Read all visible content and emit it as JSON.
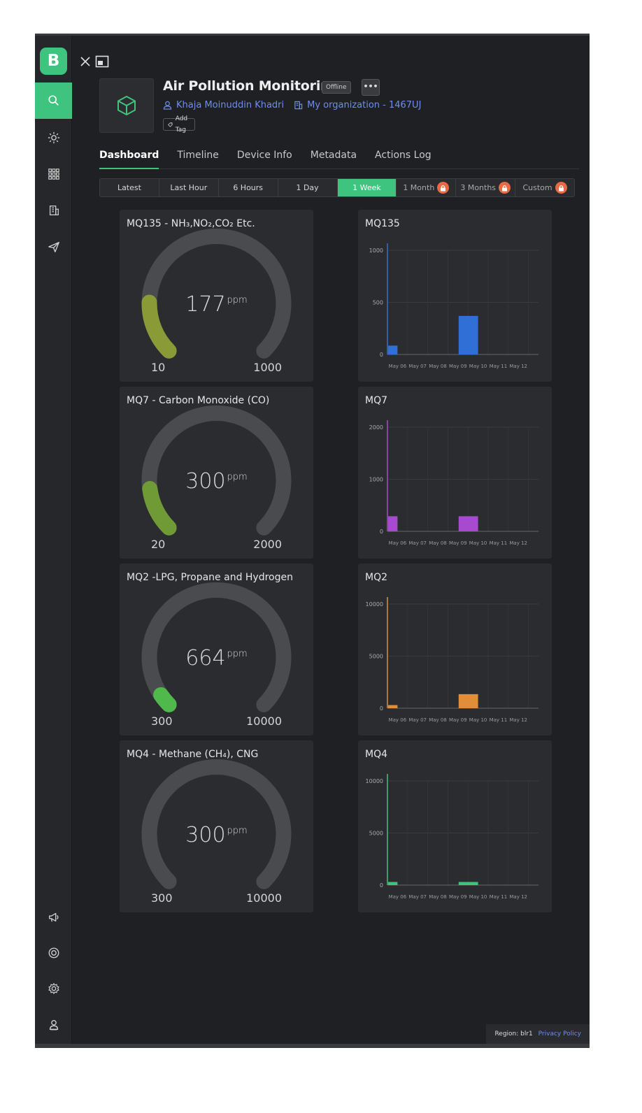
{
  "app": {
    "logo_letter": "B",
    "brand_color": "#3ec47e"
  },
  "sidebar": {
    "items": [
      {
        "name": "search-icon",
        "active": true
      },
      {
        "name": "sun-icon"
      },
      {
        "name": "grid-icon"
      },
      {
        "name": "building-icon"
      },
      {
        "name": "send-icon"
      }
    ],
    "bottom_items": [
      {
        "name": "megaphone-icon"
      },
      {
        "name": "lifebuoy-icon"
      },
      {
        "name": "gear-icon"
      },
      {
        "name": "user-icon"
      }
    ]
  },
  "device": {
    "title": "Air Pollution Monitoring",
    "status": "Offline",
    "more_label": "•••",
    "owner": "Khaja Moinuddin Khadri",
    "organization": "My organization - 1467UJ",
    "add_tag_label": "Add Tag"
  },
  "tabs": [
    {
      "label": "Dashboard",
      "active": true
    },
    {
      "label": "Timeline"
    },
    {
      "label": "Device Info"
    },
    {
      "label": "Metadata"
    },
    {
      "label": "Actions Log"
    }
  ],
  "time_ranges": [
    {
      "label": "Latest"
    },
    {
      "label": "Last Hour"
    },
    {
      "label": "6 Hours"
    },
    {
      "label": "1 Day"
    },
    {
      "label": "1 Week",
      "active": true
    },
    {
      "label": "1 Month",
      "locked": true
    },
    {
      "label": "3 Months",
      "locked": true
    },
    {
      "label": "Custom",
      "locked": true
    }
  ],
  "gauges": [
    {
      "title": "MQ135 - NH₃,NO₂,CO₂ Etc.",
      "value": "177",
      "unit": "ppm",
      "min": "10",
      "max": "1000",
      "fraction": 0.17,
      "color": "#8a9a36"
    },
    {
      "title": "MQ7 - Carbon Monoxide (CO)",
      "value": "300",
      "unit": "ppm",
      "min": "20",
      "max": "2000",
      "fraction": 0.14,
      "color": "#6f9a36"
    },
    {
      "title": "MQ2 -LPG, Propane and Hydrogen",
      "value": "664",
      "unit": "ppm",
      "min": "300",
      "max": "10000",
      "fraction": 0.04,
      "color": "#4fba4b"
    },
    {
      "title": "MQ4 - Methane (CH₄), CNG",
      "value": "300",
      "unit": "ppm",
      "min": "300",
      "max": "10000",
      "fraction": 0.0,
      "color": "#3ec47e"
    }
  ],
  "chart_data": [
    {
      "type": "bar",
      "title": "MQ135",
      "categories": [
        "May 06",
        "May 07",
        "May 08",
        "May 09",
        "May 10",
        "May 11",
        "May 12"
      ],
      "ylim": [
        0,
        1000
      ],
      "yticks": [
        "0",
        "500",
        "1000"
      ],
      "color": "#2f6fd6",
      "bars": [
        {
          "x0": "May 05",
          "x1": "May 06",
          "value": 85
        },
        {
          "x0": "May 09",
          "x1": "May 10",
          "value": 370
        }
      ]
    },
    {
      "type": "bar",
      "title": "MQ7",
      "categories": [
        "May 06",
        "May 07",
        "May 08",
        "May 09",
        "May 10",
        "May 11",
        "May 12"
      ],
      "ylim": [
        0,
        2000
      ],
      "yticks": [
        "0",
        "1000",
        "2000"
      ],
      "color": "#a84ad0",
      "bars": [
        {
          "x0": "May 05",
          "x1": "May 06",
          "value": 290
        },
        {
          "x0": "May 09",
          "x1": "May 10",
          "value": 290
        }
      ]
    },
    {
      "type": "bar",
      "title": "MQ2",
      "categories": [
        "May 06",
        "May 07",
        "May 08",
        "May 09",
        "May 10",
        "May 11",
        "May 12"
      ],
      "ylim": [
        0,
        10000
      ],
      "yticks": [
        "0",
        "5000",
        "10000"
      ],
      "color": "#e08e3a",
      "bars": [
        {
          "x0": "May 05",
          "x1": "May 06",
          "value": 300
        },
        {
          "x0": "May 09",
          "x1": "May 10",
          "value": 1350
        }
      ]
    },
    {
      "type": "bar",
      "title": "MQ4",
      "categories": [
        "May 06",
        "May 07",
        "May 08",
        "May 09",
        "May 10",
        "May 11",
        "May 12"
      ],
      "ylim": [
        0,
        10000
      ],
      "yticks": [
        "0",
        "5000",
        "10000"
      ],
      "color": "#3ec47e",
      "bars": [
        {
          "x0": "May 05",
          "x1": "May 06",
          "value": 300
        },
        {
          "x0": "May 09",
          "x1": "May 10",
          "value": 300
        }
      ]
    }
  ],
  "footer": {
    "region": "Region: blr1",
    "privacy": "Privacy Policy"
  }
}
